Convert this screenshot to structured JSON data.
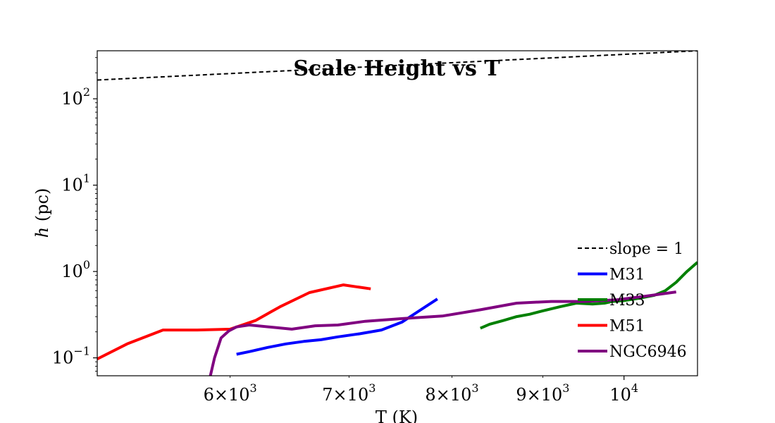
{
  "chart_data": {
    "type": "line",
    "title": "Scale Height vs T",
    "xlabel": "T (K)",
    "ylabel_italic": "h",
    "ylabel_rest": " (pc)",
    "xscale": "log",
    "yscale": "log",
    "xlim": [
      5050,
      11000
    ],
    "ylim": [
      0.062,
      360
    ],
    "x_tick_labels": [
      {
        "value": 6000,
        "mant": "6",
        "exp": "3"
      },
      {
        "value": 7000,
        "mant": "7",
        "exp": "3"
      },
      {
        "value": 8000,
        "mant": "8",
        "exp": "3"
      },
      {
        "value": 9000,
        "mant": "9",
        "exp": "3"
      },
      {
        "value": 10000,
        "mant": "",
        "exp": "4"
      }
    ],
    "y_tick_labels": [
      {
        "value": 0.1,
        "exp": "−1"
      },
      {
        "value": 1,
        "exp": "0"
      },
      {
        "value": 10,
        "exp": "1"
      },
      {
        "value": 100,
        "exp": "2"
      }
    ],
    "legend_position": "lower right",
    "grid": false,
    "series": [
      {
        "name": "slope = 1",
        "color": "#000000",
        "dash": true,
        "width": 2,
        "x": [
          5050,
          11000
        ],
        "y": [
          165,
          360
        ]
      },
      {
        "name": "M31",
        "color": "#0000ff",
        "dash": false,
        "width": 4,
        "x": [
          6050,
          6150,
          6300,
          6450,
          6600,
          6750,
          6900,
          7100,
          7300,
          7500,
          7650,
          7850
        ],
        "y": [
          0.11,
          0.118,
          0.132,
          0.145,
          0.155,
          0.162,
          0.175,
          0.19,
          0.21,
          0.26,
          0.34,
          0.48
        ]
      },
      {
        "name": "M33",
        "color": "#008000",
        "dash": false,
        "width": 4,
        "x": [
          8300,
          8400,
          8550,
          8700,
          8850,
          9000,
          9200,
          9400,
          9600,
          9750,
          9850,
          10000,
          10200,
          10400,
          10550,
          10700,
          10850,
          11000
        ],
        "y": [
          0.22,
          0.245,
          0.27,
          0.3,
          0.32,
          0.35,
          0.39,
          0.43,
          0.42,
          0.43,
          0.45,
          0.46,
          0.49,
          0.53,
          0.6,
          0.75,
          1.0,
          1.28
        ]
      },
      {
        "name": "M51",
        "color": "#ff0000",
        "dash": false,
        "width": 4,
        "x": [
          5050,
          5250,
          5500,
          5750,
          6000,
          6200,
          6400,
          6650,
          6950,
          7200
        ],
        "y": [
          0.097,
          0.145,
          0.21,
          0.21,
          0.215,
          0.27,
          0.39,
          0.57,
          0.7,
          0.63
        ]
      },
      {
        "name": "NGC6946",
        "color": "#800080",
        "dash": false,
        "width": 4,
        "x": [
          5840,
          5880,
          5930,
          5990,
          6050,
          6150,
          6350,
          6500,
          6700,
          6900,
          7150,
          7500,
          7900,
          8300,
          8700,
          9100,
          9500,
          9900,
          10300,
          10700
        ],
        "y": [
          0.055,
          0.1,
          0.17,
          0.205,
          0.228,
          0.24,
          0.225,
          0.215,
          0.235,
          0.24,
          0.265,
          0.285,
          0.305,
          0.36,
          0.43,
          0.45,
          0.45,
          0.47,
          0.52,
          0.58
        ]
      }
    ]
  }
}
